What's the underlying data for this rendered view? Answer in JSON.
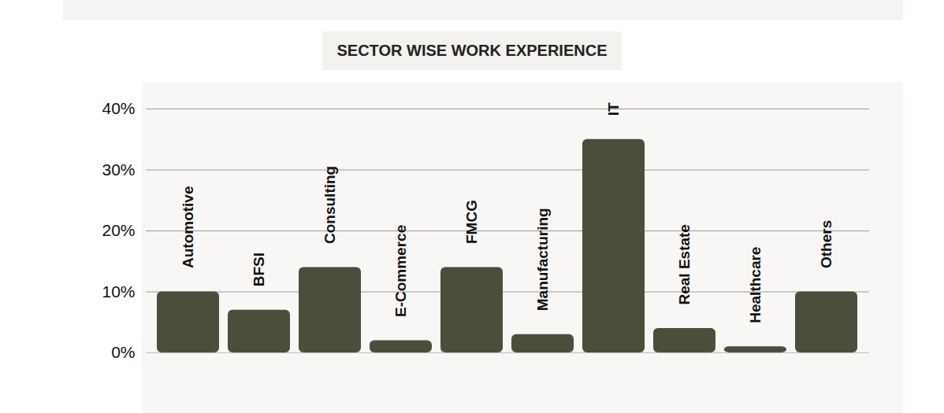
{
  "chart_data": {
    "type": "bar",
    "title": "SECTOR WISE WORK EXPERIENCE",
    "categories": [
      "Automotive",
      "BFSI",
      "Consulting",
      "E-Commerce",
      "FMCG",
      "Manufacturing",
      "IT",
      "Real Estate",
      "Healthcare",
      "Others"
    ],
    "values": [
      10,
      7,
      14,
      2,
      14,
      3,
      35,
      4,
      1,
      10
    ],
    "color": "#4b4e3b",
    "ylim": [
      0,
      40
    ],
    "yticks": [
      {
        "value": 0,
        "label": "0%"
      },
      {
        "value": 10,
        "label": "10%"
      },
      {
        "value": 20,
        "label": "20%"
      },
      {
        "value": 30,
        "label": "30%"
      },
      {
        "value": 40,
        "label": "40%"
      }
    ],
    "grid": true
  }
}
